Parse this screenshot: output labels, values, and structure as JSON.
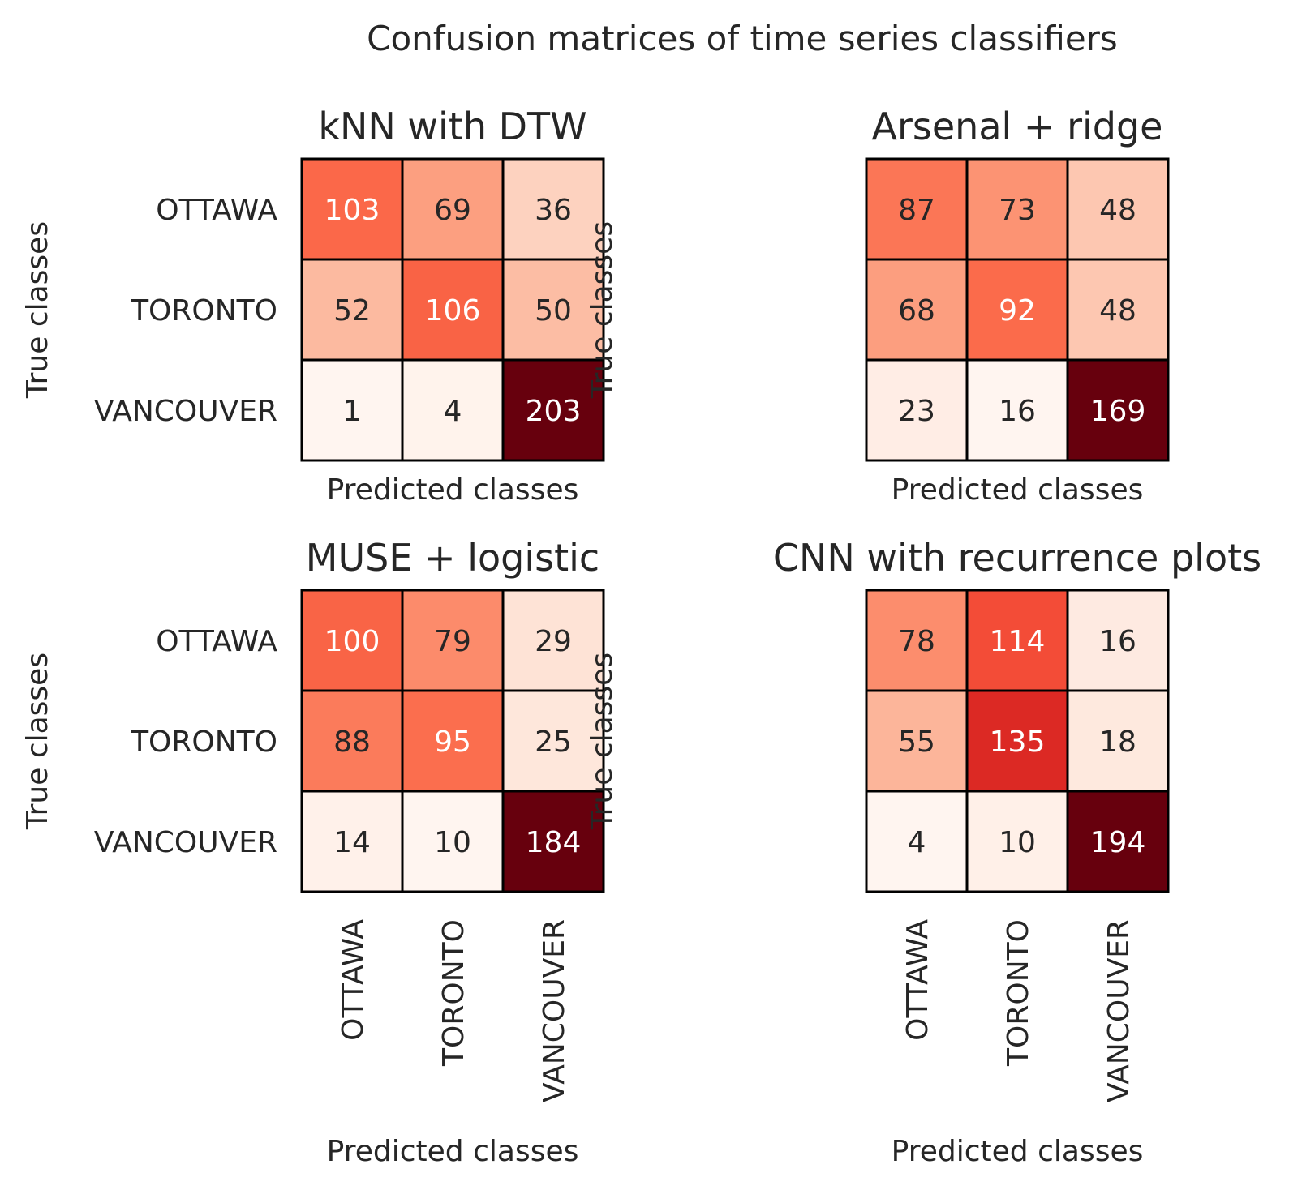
{
  "suptitle": "Confusion matrices of time series classifiers",
  "colormap": "Reds",
  "chart_data": [
    {
      "type": "heatmap",
      "title": "kNN with DTW",
      "xlabel": "Predicted classes",
      "ylabel": "True classes",
      "row_labels": [
        "OTTAWA",
        "TORONTO",
        "VANCOUVER"
      ],
      "col_labels": [
        "OTTAWA",
        "TORONTO",
        "VANCOUVER"
      ],
      "show_col_tick_labels": false,
      "values": [
        [
          103,
          69,
          36
        ],
        [
          52,
          106,
          50
        ],
        [
          1,
          4,
          203
        ]
      ]
    },
    {
      "type": "heatmap",
      "title": "Arsenal + ridge",
      "xlabel": "Predicted classes",
      "ylabel": "True classes",
      "row_labels": [],
      "col_labels": [
        "OTTAWA",
        "TORONTO",
        "VANCOUVER"
      ],
      "show_col_tick_labels": false,
      "values": [
        [
          87,
          73,
          48
        ],
        [
          68,
          92,
          48
        ],
        [
          23,
          16,
          169
        ]
      ]
    },
    {
      "type": "heatmap",
      "title": "MUSE + logistic",
      "xlabel": "Predicted classes",
      "ylabel": "True classes",
      "row_labels": [
        "OTTAWA",
        "TORONTO",
        "VANCOUVER"
      ],
      "col_labels": [
        "OTTAWA",
        "TORONTO",
        "VANCOUVER"
      ],
      "show_col_tick_labels": true,
      "values": [
        [
          100,
          79,
          29
        ],
        [
          88,
          95,
          25
        ],
        [
          14,
          10,
          184
        ]
      ]
    },
    {
      "type": "heatmap",
      "title": "CNN with recurrence plots",
      "xlabel": "Predicted classes",
      "ylabel": "True classes",
      "row_labels": [],
      "col_labels": [
        "OTTAWA",
        "TORONTO",
        "VANCOUVER"
      ],
      "show_col_tick_labels": true,
      "values": [
        [
          78,
          114,
          16
        ],
        [
          55,
          135,
          18
        ],
        [
          4,
          10,
          194
        ]
      ]
    }
  ]
}
